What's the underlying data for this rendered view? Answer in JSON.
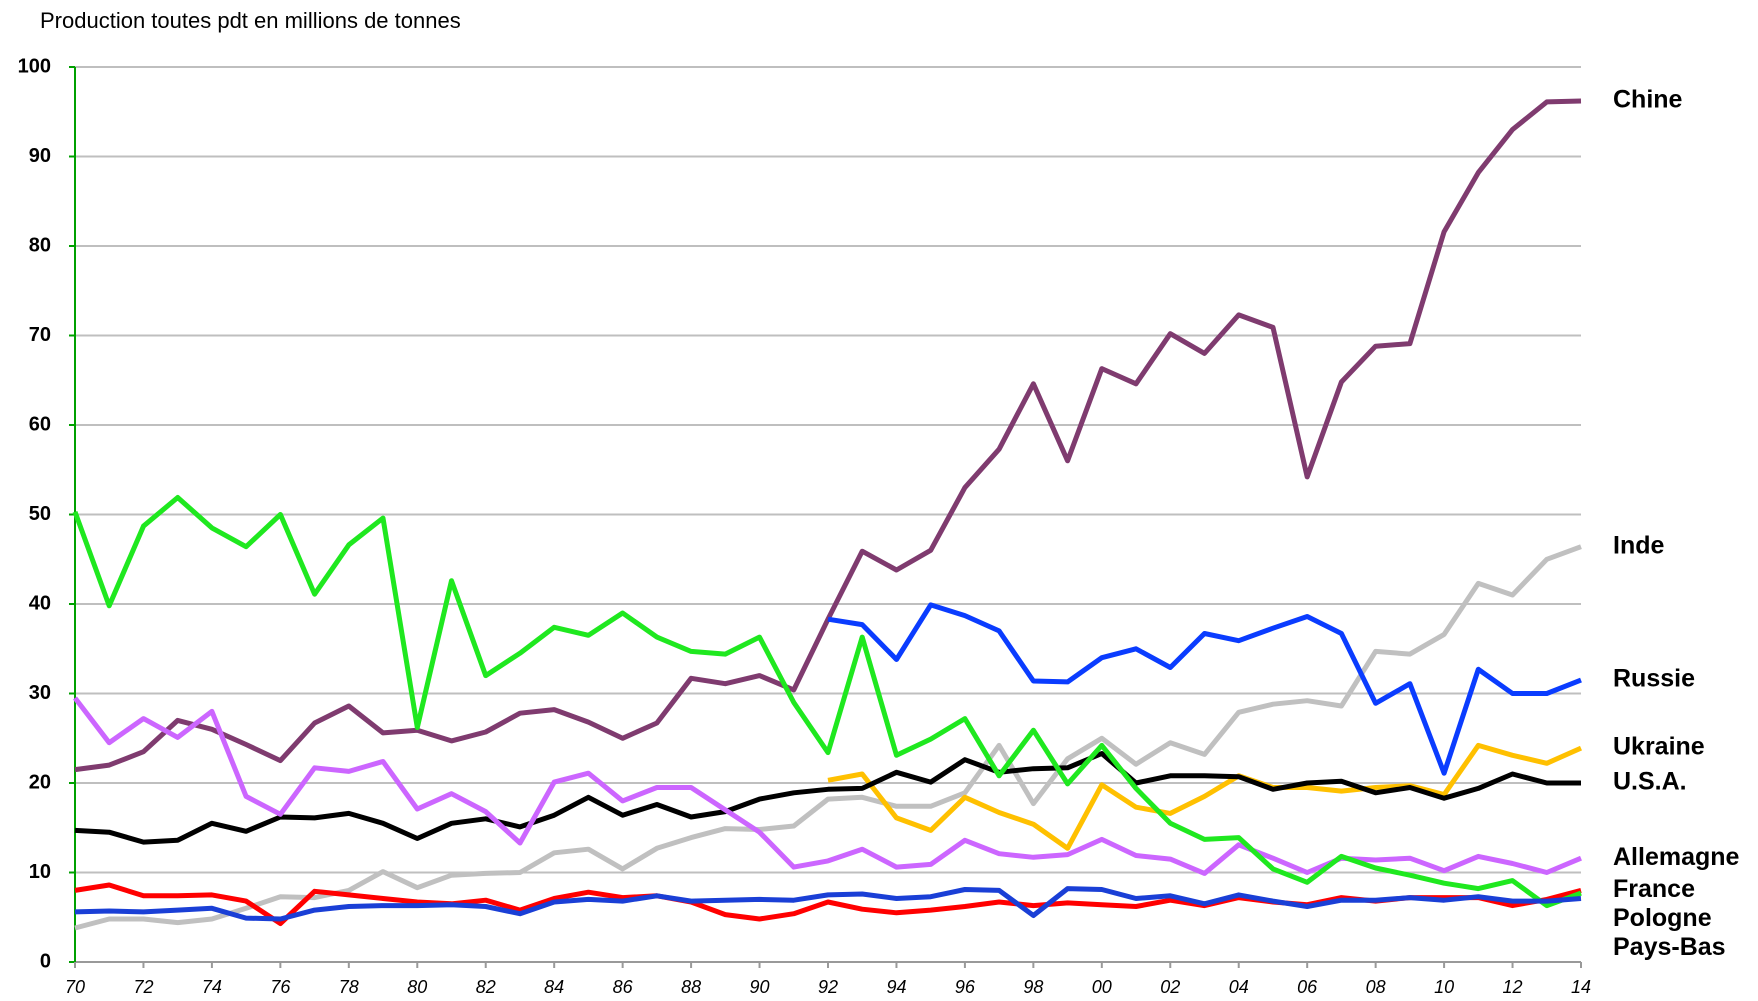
{
  "chart_data": {
    "type": "line",
    "title": "Production toutes pdt en millions de tonnes",
    "categories": [
      "70",
      null,
      "72",
      null,
      "74",
      null,
      "76",
      null,
      "78",
      null,
      "80",
      null,
      "82",
      null,
      "84",
      null,
      "86",
      null,
      "88",
      null,
      "90",
      null,
      "92",
      null,
      "94",
      null,
      "96",
      null,
      "98",
      null,
      "00",
      null,
      "02",
      null,
      "04",
      null,
      "06",
      null,
      "08",
      null,
      "10",
      null,
      "12",
      null,
      "14"
    ],
    "ylim": [
      0,
      100
    ],
    "yticks": [
      0,
      10,
      20,
      30,
      40,
      50,
      60,
      70,
      80,
      90,
      100
    ],
    "grid": true,
    "series": [
      {
        "name": "Chine",
        "color": "#7f3b6f",
        "values": [
          21.5,
          22,
          23.5,
          27,
          26,
          24.3,
          22.5,
          26.7,
          28.6,
          25.6,
          25.9,
          24.7,
          25.7,
          27.8,
          28.2,
          26.8,
          25,
          26.7,
          31.7,
          31.1,
          32,
          30.4,
          38.3,
          45.9,
          43.8,
          46,
          53,
          57.3,
          64.6,
          56,
          66.3,
          64.6,
          70.2,
          68,
          72.3,
          70.9,
          54.2,
          64.8,
          68.8,
          69.1,
          81.6,
          88.2,
          93,
          96.1,
          96.2
        ]
      },
      {
        "name": "Inde",
        "color": "#c0c0c0",
        "values": [
          3.8,
          4.8,
          4.8,
          4.4,
          4.8,
          6,
          7.3,
          7.2,
          8,
          10.1,
          8.3,
          9.7,
          9.9,
          10,
          12.2,
          12.6,
          10.4,
          12.7,
          13.9,
          14.9,
          14.8,
          15.2,
          18.2,
          18.4,
          17.4,
          17.4,
          18.9,
          24.2,
          17.7,
          22.7,
          25,
          22.1,
          24.5,
          23.2,
          27.9,
          28.8,
          29.2,
          28.6,
          34.7,
          34.4,
          36.6,
          42.3,
          41,
          45,
          46.4
        ]
      },
      {
        "name": "Russie",
        "color": "#0a3cff",
        "values": [
          null,
          null,
          null,
          null,
          null,
          null,
          null,
          null,
          null,
          null,
          null,
          null,
          null,
          null,
          null,
          null,
          null,
          null,
          null,
          null,
          null,
          null,
          38.3,
          37.7,
          33.8,
          39.9,
          38.7,
          37,
          31.4,
          31.3,
          34,
          35,
          32.9,
          36.7,
          35.9,
          37.3,
          38.6,
          36.7,
          28.9,
          31.1,
          21.1,
          32.7,
          30,
          30,
          31.5
        ]
      },
      {
        "name": "Ukraine",
        "color": "#ffc000",
        "values": [
          null,
          null,
          null,
          null,
          null,
          null,
          null,
          null,
          null,
          null,
          null,
          null,
          null,
          null,
          null,
          null,
          null,
          null,
          null,
          null,
          null,
          null,
          20.3,
          21,
          16.1,
          14.7,
          18.4,
          16.7,
          15.4,
          12.7,
          19.8,
          17.3,
          16.6,
          18.5,
          20.8,
          19.5,
          19.5,
          19.1,
          19.5,
          19.7,
          18.7,
          24.2,
          23.1,
          22.2,
          23.9
        ]
      },
      {
        "name": "U.S.A.",
        "color": "#000000",
        "values": [
          14.7,
          14.5,
          13.4,
          13.6,
          15.5,
          14.6,
          16.2,
          16.1,
          16.6,
          15.5,
          13.8,
          15.5,
          16,
          15.1,
          16.4,
          18.4,
          16.4,
          17.6,
          16.2,
          16.8,
          18.2,
          18.9,
          19.3,
          19.4,
          21.2,
          20.1,
          22.6,
          21.2,
          21.6,
          21.7,
          23.3,
          20,
          20.8,
          20.8,
          20.7,
          19.3,
          20,
          20.2,
          18.9,
          19.5,
          18.3,
          19.4,
          21,
          20,
          20
        ]
      },
      {
        "name": "Allemagne",
        "color": "#cc66ff",
        "values": [
          29.5,
          24.5,
          27.2,
          25.1,
          28,
          18.5,
          16.5,
          21.7,
          21.3,
          22.4,
          17.1,
          18.8,
          16.8,
          13.3,
          20.1,
          21.1,
          18,
          19.5,
          19.5,
          17,
          14.5,
          10.6,
          11.3,
          12.6,
          10.6,
          10.9,
          13.6,
          12.1,
          11.7,
          12,
          13.7,
          11.9,
          11.5,
          9.9,
          13.1,
          11.6,
          10,
          11.6,
          11.4,
          11.6,
          10.2,
          11.8,
          11,
          10,
          11.6
        ]
      },
      {
        "name": "France",
        "color": "#ff0000",
        "values": [
          8,
          8.6,
          7.4,
          7.4,
          7.5,
          6.8,
          4.3,
          7.9,
          7.5,
          7.1,
          6.7,
          6.5,
          6.9,
          5.8,
          7.1,
          7.8,
          7.2,
          7.4,
          6.7,
          5.3,
          4.8,
          5.4,
          6.7,
          5.9,
          5.5,
          5.8,
          6.2,
          6.7,
          6.3,
          6.6,
          6.4,
          6.2,
          6.9,
          6.3,
          7.2,
          6.7,
          6.4,
          7.2,
          6.8,
          7.2,
          7.2,
          7.2,
          6.3,
          7,
          8
        ]
      },
      {
        "name": "Pologne",
        "color": "#1fe81f",
        "values": [
          50.3,
          39.8,
          48.7,
          51.9,
          48.5,
          46.4,
          50,
          41.1,
          46.6,
          49.6,
          26.2,
          42.6,
          32,
          34.5,
          37.4,
          36.5,
          39,
          36.3,
          34.7,
          34.4,
          36.3,
          29,
          23.4,
          36.3,
          23.1,
          24.9,
          27.2,
          20.8,
          25.9,
          19.9,
          24.2,
          19.4,
          15.5,
          13.7,
          13.9,
          10.4,
          8.9,
          11.8,
          10.5,
          9.7,
          8.8,
          8.2,
          9.1,
          6.3,
          7.7
        ]
      },
      {
        "name": "Pays-Bas",
        "color": "#1a3fd6",
        "values": [
          5.6,
          5.7,
          5.6,
          5.8,
          6,
          4.9,
          4.8,
          5.8,
          6.2,
          6.3,
          6.3,
          6.4,
          6.2,
          5.4,
          6.7,
          7,
          6.8,
          7.4,
          6.8,
          6.9,
          7,
          6.9,
          7.5,
          7.6,
          7.1,
          7.3,
          8.1,
          8,
          5.2,
          8.2,
          8.1,
          7.1,
          7.4,
          6.5,
          7.5,
          6.8,
          6.2,
          6.9,
          6.9,
          7.2,
          6.9,
          7.3,
          6.8,
          6.8,
          7.1
        ]
      }
    ]
  }
}
